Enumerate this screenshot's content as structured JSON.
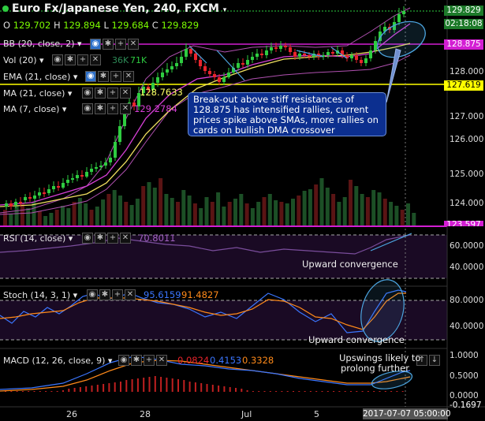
{
  "header": {
    "title": "Euro Fx/Japanese Yen, 240, FXCM",
    "ohlc": {
      "o_label": "O",
      "o": "129.702",
      "h_label": "H",
      "h": "129.894",
      "l_label": "L",
      "l": "129.684",
      "c_label": "C",
      "c": "129.829"
    }
  },
  "indicators": {
    "bb": "BB (20, close, 2)",
    "vol": "Vol (20)",
    "vol_values": {
      "a": "36K",
      "b": "71K"
    },
    "ema": "EMA (21, close)",
    "ma21": "MA (21, close)",
    "ma21_value": "128.7633",
    "ma7": "MA (7, close)",
    "ma7_value": "129.2784",
    "rsi": "RSI (14, close)",
    "rsi_value": "70.8011",
    "stoch": "Stoch (14, 3, 1)",
    "stoch_k": "95.6159",
    "stoch_d": "91.4827",
    "macd": "MACD (12, 26, close, 9)",
    "macd_hist": "0.0824",
    "macd_line": "0.4153",
    "macd_signal": "0.3328"
  },
  "price_axis": {
    "ticks": [
      "128.000",
      "127.000",
      "126.000",
      "125.000",
      "124.000"
    ],
    "tag_last": "129.829",
    "tag_time": "02:18:08",
    "tag_resistance": "128.875",
    "tag_support": "127.619",
    "tag_bottom": "123.597"
  },
  "rsi_axis": [
    "60.0000",
    "40.0000"
  ],
  "stoch_axis": [
    "80.0000",
    "40.0000"
  ],
  "macd_axis": [
    "1.0000",
    "0.5000",
    "0.0000",
    "-0.1697"
  ],
  "time_axis": {
    "labels": [
      "26",
      "28",
      "Jul",
      "5"
    ],
    "cursor": "2017-07-07 05:00:00"
  },
  "annotations": {
    "callout": "Break-out above stiff resistances of 128.875 has intensified rallies, current prices spike above SMAs, more rallies on cards on bullish DMA crossover",
    "rsi_note": "Upward convergence",
    "stoch_note": "Upward convergence",
    "macd_note_1": "Upswings likely to",
    "macd_note_2": "prolong further"
  },
  "colors": {
    "bg": "#000000",
    "up": "#2ecc40",
    "down": "#e8242c",
    "ma7": "#d63fd6",
    "ma21": "#ffff66",
    "ema": "#f0e060",
    "bb": "#b050b0",
    "resistance": "#d31ed3",
    "support": "#ffff00",
    "stoch_k": "#3b76ff",
    "stoch_d": "#ff8a1a",
    "macd_line": "#3b76ff",
    "macd_signal": "#ff8a1a",
    "annotation": "#4ca5e0"
  }
}
